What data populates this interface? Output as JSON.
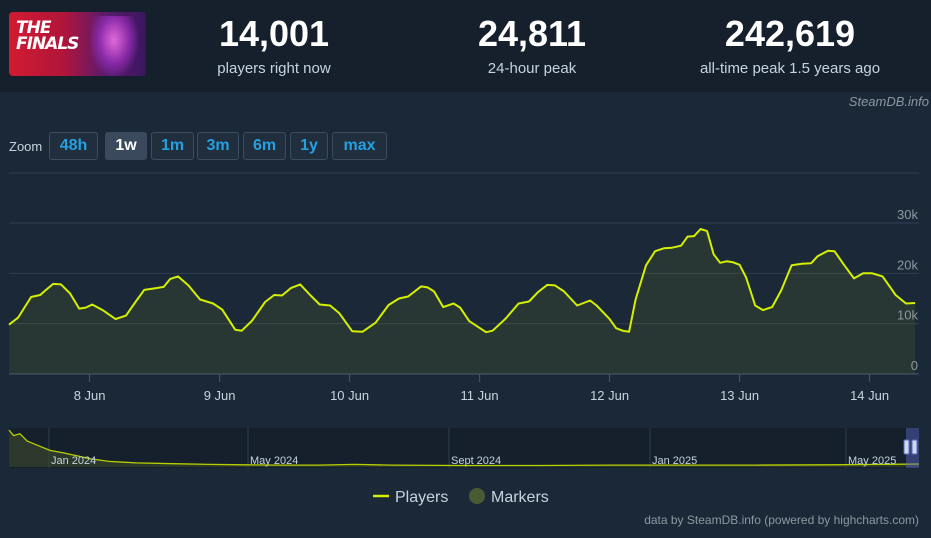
{
  "game": {
    "title": "THE FINALS"
  },
  "stats": [
    {
      "value": "14,001",
      "label": "players right now"
    },
    {
      "value": "24,811",
      "label": "24-hour peak"
    },
    {
      "value": "242,619",
      "label": "all-time peak 1.5 years ago"
    }
  ],
  "brand": "SteamDB.info",
  "zoom": {
    "label": "Zoom",
    "options": [
      "48h",
      "1w",
      "1m",
      "3m",
      "6m",
      "1y",
      "max"
    ],
    "active": "1w"
  },
  "credit": "data by SteamDB.info (powered by highcharts.com)",
  "colors": {
    "line": "#d4f000",
    "marker": "#4a5a35",
    "background": "#1b2838"
  },
  "chart_data": {
    "type": "line",
    "x_unit": "days since 7 Jun 00:00",
    "x_range": [
      7.38,
      14.38
    ],
    "ylim": [
      0,
      30000
    ],
    "y_ticks": [
      {
        "value": 0,
        "label": "0"
      },
      {
        "value": 10000,
        "label": "10k"
      },
      {
        "value": 20000,
        "label": "20k"
      },
      {
        "value": 30000,
        "label": "30k"
      }
    ],
    "x_ticks": [
      {
        "value": 8,
        "label": "8 Jun"
      },
      {
        "value": 9,
        "label": "9 Jun"
      },
      {
        "value": 10,
        "label": "10 Jun"
      },
      {
        "value": 11,
        "label": "11 Jun"
      },
      {
        "value": 12,
        "label": "12 Jun"
      },
      {
        "value": 13,
        "label": "13 Jun"
      },
      {
        "value": 14,
        "label": "14 Jun"
      }
    ],
    "grid": true,
    "legend_position": "bottom-center",
    "series": [
      {
        "name": "Players",
        "points": [
          [
            7.38,
            9800
          ],
          [
            7.45,
            11200
          ],
          [
            7.55,
            15300
          ],
          [
            7.62,
            15700
          ],
          [
            7.66,
            16600
          ],
          [
            7.72,
            17900
          ],
          [
            7.78,
            17800
          ],
          [
            7.85,
            16000
          ],
          [
            7.92,
            13000
          ],
          [
            7.97,
            13200
          ],
          [
            8.02,
            13800
          ],
          [
            8.1,
            12700
          ],
          [
            8.2,
            10900
          ],
          [
            8.28,
            11600
          ],
          [
            8.35,
            14200
          ],
          [
            8.42,
            16700
          ],
          [
            8.5,
            17000
          ],
          [
            8.57,
            17300
          ],
          [
            8.62,
            18900
          ],
          [
            8.68,
            19400
          ],
          [
            8.76,
            17600
          ],
          [
            8.85,
            14800
          ],
          [
            8.95,
            14000
          ],
          [
            9.02,
            12800
          ],
          [
            9.12,
            8800
          ],
          [
            9.17,
            8600
          ],
          [
            9.25,
            10600
          ],
          [
            9.35,
            14300
          ],
          [
            9.42,
            15700
          ],
          [
            9.48,
            15600
          ],
          [
            9.55,
            17100
          ],
          [
            9.62,
            17800
          ],
          [
            9.7,
            15600
          ],
          [
            9.77,
            13800
          ],
          [
            9.85,
            13600
          ],
          [
            9.92,
            12100
          ],
          [
            10.02,
            8500
          ],
          [
            10.1,
            8400
          ],
          [
            10.2,
            10200
          ],
          [
            10.3,
            13700
          ],
          [
            10.38,
            15000
          ],
          [
            10.45,
            15400
          ],
          [
            10.55,
            17400
          ],
          [
            10.6,
            17200
          ],
          [
            10.65,
            16400
          ],
          [
            10.72,
            13300
          ],
          [
            10.8,
            14000
          ],
          [
            10.85,
            13200
          ],
          [
            10.92,
            10500
          ],
          [
            11.05,
            8300
          ],
          [
            11.1,
            8600
          ],
          [
            11.2,
            11000
          ],
          [
            11.3,
            14000
          ],
          [
            11.38,
            14400
          ],
          [
            11.45,
            16300
          ],
          [
            11.52,
            17700
          ],
          [
            11.58,
            17600
          ],
          [
            11.65,
            16400
          ],
          [
            11.75,
            13600
          ],
          [
            11.85,
            14600
          ],
          [
            11.9,
            13600
          ],
          [
            12.0,
            10900
          ],
          [
            12.05,
            9100
          ],
          [
            12.1,
            8600
          ],
          [
            12.15,
            8400
          ],
          [
            12.2,
            14800
          ],
          [
            12.28,
            21600
          ],
          [
            12.35,
            24400
          ],
          [
            12.42,
            25000
          ],
          [
            12.48,
            25100
          ],
          [
            12.55,
            25500
          ],
          [
            12.6,
            27300
          ],
          [
            12.65,
            27400
          ],
          [
            12.7,
            28800
          ],
          [
            12.75,
            28400
          ],
          [
            12.8,
            23800
          ],
          [
            12.85,
            22100
          ],
          [
            12.9,
            22400
          ],
          [
            12.95,
            22200
          ],
          [
            13.0,
            21700
          ],
          [
            13.05,
            19200
          ],
          [
            13.12,
            13600
          ],
          [
            13.18,
            12700
          ],
          [
            13.25,
            13300
          ],
          [
            13.32,
            16600
          ],
          [
            13.4,
            21600
          ],
          [
            13.48,
            21900
          ],
          [
            13.55,
            22000
          ],
          [
            13.6,
            23400
          ],
          [
            13.68,
            24500
          ],
          [
            13.73,
            24400
          ],
          [
            13.8,
            21800
          ],
          [
            13.88,
            19000
          ],
          [
            13.95,
            20000
          ],
          [
            14.02,
            20000
          ],
          [
            14.1,
            19400
          ],
          [
            14.2,
            15700
          ],
          [
            14.28,
            14000
          ],
          [
            14.35,
            14100
          ]
        ]
      }
    ],
    "navigator": {
      "x_ticks": [
        {
          "label": "Jan 2024"
        },
        {
          "label": "May 2024"
        },
        {
          "label": "Sept 2024"
        },
        {
          "label": "Jan 2025"
        },
        {
          "label": "May 2025"
        }
      ]
    },
    "legend": [
      {
        "name": "Players",
        "symbol": "line"
      },
      {
        "name": "Markers",
        "symbol": "circle"
      }
    ]
  }
}
